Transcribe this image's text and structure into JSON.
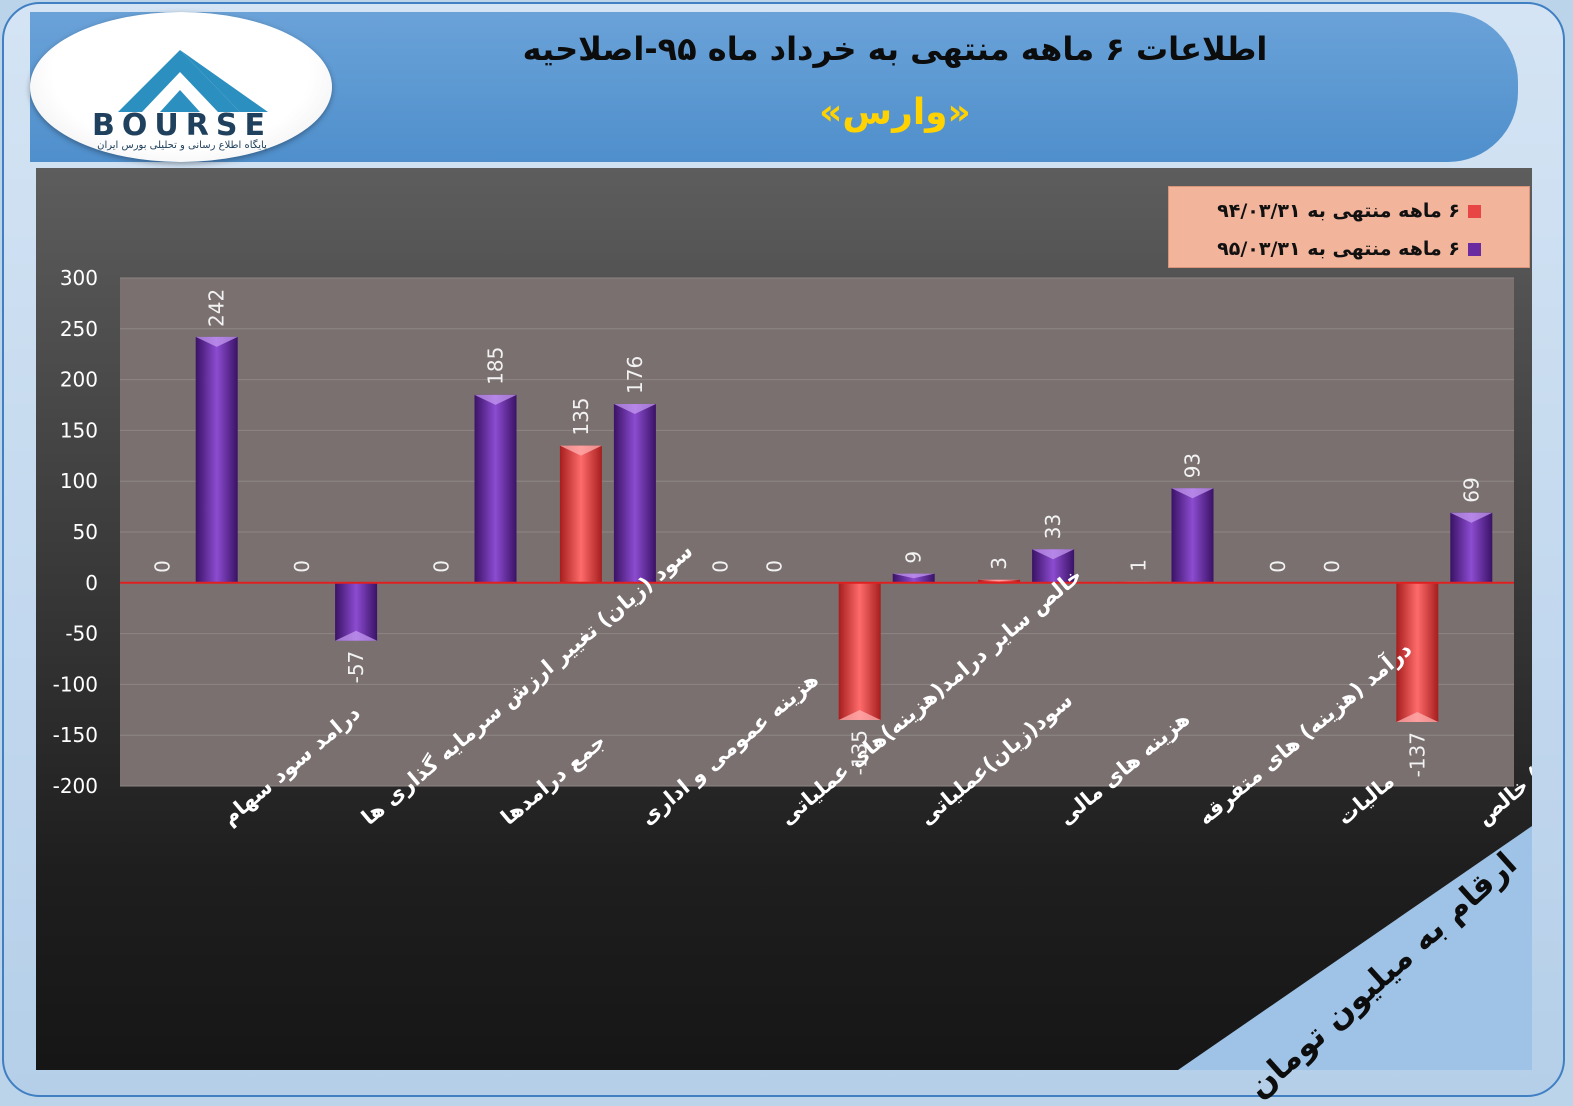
{
  "header": {
    "title": "اطلاعات ۶ ماهه منتهی به خرداد ماه ۹۵-اصلاحیه",
    "subtitle": "«وارس»"
  },
  "logo": {
    "brand": "BOURSE",
    "tagline": "پایگاه اطلاع رسانی و تحلیلی بورس ایران"
  },
  "unit_label": "ارقام به میلیون تومان",
  "colors": {
    "series_1": "#e84545",
    "series_2": "#6a2aa0",
    "zero_line": "#e02020",
    "plot_bg": "#7a7070"
  },
  "chart_data": {
    "type": "bar",
    "categories": [
      "درامد سود سهام",
      "سود (زیان) تغییر ارزش سرمایه گذاری ها",
      "جمع درامدها",
      "هزینه عمومی و اداری",
      "خالص سایر درامد(هزینه)های عملیاتی",
      "سود(زیان)عملیاتی",
      "هزینه های مالی",
      "درآمد (هزینه) های متفرقه",
      "مالیات",
      "سود(زیان) خالص"
    ],
    "series": [
      {
        "name": "۶ ماهه منتهی به ۹۴/۰۳/۳۱",
        "values": [
          0,
          0,
          0,
          135,
          0,
          -135,
          3,
          1,
          0,
          -137
        ]
      },
      {
        "name": "۶ ماهه منتهی به ۹۵/۰۳/۳۱",
        "values": [
          242,
          -57,
          185,
          176,
          0,
          9,
          33,
          93,
          0,
          69
        ]
      }
    ],
    "ylim": [
      -200,
      300
    ],
    "yticks": [
      300,
      250,
      200,
      150,
      100,
      50,
      0,
      -50,
      -100,
      -150,
      -200
    ],
    "legend_position": "top-right",
    "grid": true
  }
}
